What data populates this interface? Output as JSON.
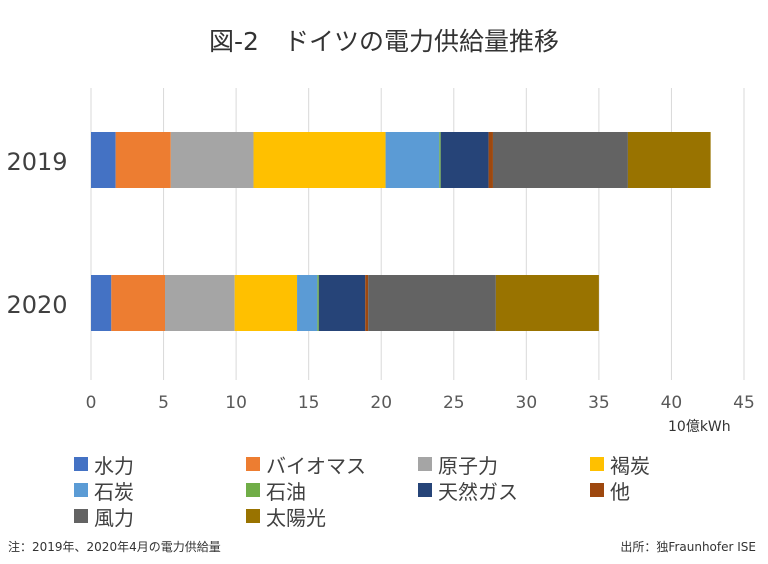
{
  "chart_data": {
    "type": "bar",
    "orientation": "horizontal",
    "stacked": true,
    "title": "図-2　ドイツの電力供給量推移",
    "xlabel": "10億kWh",
    "xlim": [
      0,
      45
    ],
    "xticks": [
      0,
      5,
      10,
      15,
      20,
      25,
      30,
      35,
      40,
      45
    ],
    "grid": "vertical",
    "legend_position": "bottom",
    "categories": [
      "2019",
      "2020"
    ],
    "series": [
      {
        "name": "水力",
        "color": "#4472C4",
        "values": [
          1.7,
          1.4
        ]
      },
      {
        "name": "バイオマス",
        "color": "#ED7D31",
        "values": [
          3.8,
          3.7
        ]
      },
      {
        "name": "原子力",
        "color": "#A5A5A5",
        "values": [
          5.7,
          4.8
        ]
      },
      {
        "name": "褐炭",
        "color": "#FFC000",
        "values": [
          9.1,
          4.3
        ]
      },
      {
        "name": "石炭",
        "color": "#5B9BD5",
        "values": [
          3.7,
          1.4
        ]
      },
      {
        "name": "石油",
        "color": "#70AD47",
        "values": [
          0.1,
          0.1
        ]
      },
      {
        "name": "天然ガス",
        "color": "#264478",
        "values": [
          3.3,
          3.2
        ]
      },
      {
        "name": "他",
        "color": "#9E480E",
        "values": [
          0.3,
          0.2
        ]
      },
      {
        "name": "風力",
        "color": "#636363",
        "values": [
          9.3,
          8.8
        ]
      },
      {
        "name": "太陽光",
        "color": "#997300",
        "values": [
          5.7,
          7.1
        ]
      }
    ]
  },
  "note": "注：2019年、2020年4月の電力供給量",
  "source": "出所：独Fraunhofer ISE"
}
